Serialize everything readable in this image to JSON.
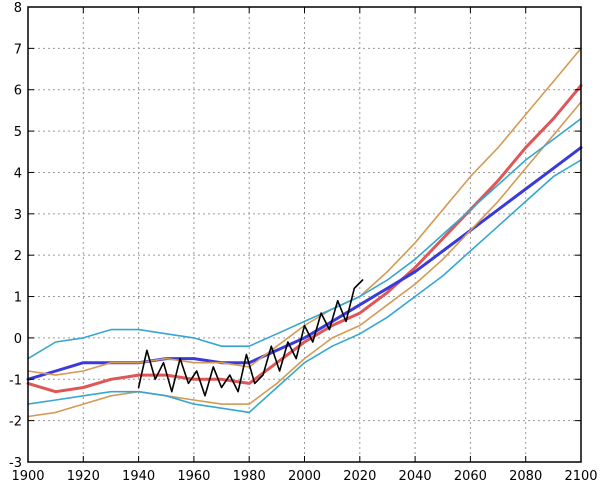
{
  "chart_data": {
    "type": "line",
    "title": "",
    "xlabel": "",
    "ylabel": "",
    "xlim": [
      1900,
      2100
    ],
    "ylim": [
      -3,
      8
    ],
    "x_ticks": [
      1900,
      1920,
      1940,
      1960,
      1980,
      2000,
      2020,
      2040,
      2060,
      2080,
      2100
    ],
    "y_ticks": [
      -3,
      -2,
      -1,
      0,
      1,
      2,
      3,
      4,
      5,
      6,
      7,
      8
    ],
    "grid": true,
    "legend": "none",
    "colors": {
      "red": "#e05555",
      "blue": "#3a3adb",
      "orange": "#d49a55",
      "cyan": "#35a7d0",
      "black": "#000000"
    },
    "series": [
      {
        "color": "#e05555",
        "width": 3.0,
        "x": [
          1900,
          1910,
          1920,
          1930,
          1940,
          1950,
          1960,
          1970,
          1980,
          1990,
          2000,
          2010,
          2020,
          2030,
          2040,
          2050,
          2060,
          2070,
          2080,
          2090,
          2100
        ],
        "y": [
          -1.1,
          -1.3,
          -1.2,
          -1.0,
          -0.9,
          -0.9,
          -1.0,
          -1.0,
          -1.1,
          -0.6,
          -0.1,
          0.3,
          0.6,
          1.1,
          1.7,
          2.4,
          3.1,
          3.8,
          4.6,
          5.3,
          6.1
        ]
      },
      {
        "color": "#3a3adb",
        "width": 3.0,
        "x": [
          1900,
          1910,
          1920,
          1930,
          1940,
          1950,
          1960,
          1970,
          1980,
          1990,
          2000,
          2010,
          2020,
          2030,
          2040,
          2050,
          2060,
          2070,
          2080,
          2090,
          2100
        ],
        "y": [
          -1.0,
          -0.8,
          -0.6,
          -0.6,
          -0.6,
          -0.5,
          -0.5,
          -0.6,
          -0.6,
          -0.3,
          0.0,
          0.4,
          0.8,
          1.2,
          1.6,
          2.1,
          2.6,
          3.1,
          3.6,
          4.1,
          4.6
        ]
      },
      {
        "color": "#d49a55",
        "width": 1.6,
        "x": [
          1900,
          1910,
          1920,
          1930,
          1940,
          1950,
          1960,
          1970,
          1980,
          1990,
          2000,
          2010,
          2020,
          2030,
          2040,
          2050,
          2060,
          2070,
          2080,
          2090,
          2100
        ],
        "y": [
          -0.8,
          -0.9,
          -0.8,
          -0.6,
          -0.6,
          -0.5,
          -0.6,
          -0.6,
          -0.7,
          -0.2,
          0.3,
          0.7,
          1.0,
          1.6,
          2.3,
          3.1,
          3.9,
          4.6,
          5.4,
          6.2,
          7.0
        ]
      },
      {
        "color": "#d49a55",
        "width": 1.6,
        "x": [
          1900,
          1910,
          1920,
          1930,
          1940,
          1950,
          1960,
          1970,
          1980,
          1990,
          2000,
          2010,
          2020,
          2030,
          2040,
          2050,
          2060,
          2070,
          2080,
          2090,
          2100
        ],
        "y": [
          -1.9,
          -1.8,
          -1.6,
          -1.4,
          -1.3,
          -1.4,
          -1.5,
          -1.6,
          -1.6,
          -1.1,
          -0.5,
          0.0,
          0.3,
          0.8,
          1.3,
          1.9,
          2.6,
          3.3,
          4.1,
          4.9,
          5.7
        ]
      },
      {
        "color": "#35a7d0",
        "width": 1.6,
        "x": [
          1900,
          1910,
          1920,
          1930,
          1940,
          1950,
          1960,
          1970,
          1980,
          1990,
          2000,
          2010,
          2020,
          2030,
          2040,
          2050,
          2060,
          2070,
          2080,
          2090,
          2100
        ],
        "y": [
          -0.5,
          -0.1,
          0.0,
          0.2,
          0.2,
          0.1,
          0.0,
          -0.2,
          -0.2,
          0.1,
          0.4,
          0.7,
          1.0,
          1.4,
          1.9,
          2.5,
          3.1,
          3.7,
          4.3,
          4.8,
          5.3
        ]
      },
      {
        "color": "#35a7d0",
        "width": 1.6,
        "x": [
          1900,
          1910,
          1920,
          1930,
          1940,
          1950,
          1960,
          1970,
          1980,
          1990,
          2000,
          2010,
          2020,
          2030,
          2040,
          2050,
          2060,
          2070,
          2080,
          2090,
          2100
        ],
        "y": [
          -1.6,
          -1.5,
          -1.4,
          -1.3,
          -1.3,
          -1.4,
          -1.6,
          -1.7,
          -1.8,
          -1.2,
          -0.6,
          -0.2,
          0.1,
          0.5,
          1.0,
          1.5,
          2.1,
          2.7,
          3.3,
          3.9,
          4.3
        ]
      },
      {
        "color": "#000000",
        "width": 1.6,
        "x": [
          1940,
          1943,
          1946,
          1949,
          1952,
          1955,
          1958,
          1961,
          1964,
          1967,
          1970,
          1973,
          1976,
          1979,
          1982,
          1985,
          1988,
          1991,
          1994,
          1997,
          2000,
          2003,
          2006,
          2009,
          2012,
          2015,
          2018,
          2021
        ],
        "y": [
          -1.2,
          -0.3,
          -1.0,
          -0.6,
          -1.3,
          -0.5,
          -1.1,
          -0.8,
          -1.4,
          -0.7,
          -1.2,
          -0.9,
          -1.3,
          -0.4,
          -1.1,
          -0.9,
          -0.2,
          -0.8,
          -0.1,
          -0.5,
          0.3,
          -0.1,
          0.6,
          0.2,
          0.9,
          0.4,
          1.2,
          1.4
        ]
      }
    ]
  }
}
